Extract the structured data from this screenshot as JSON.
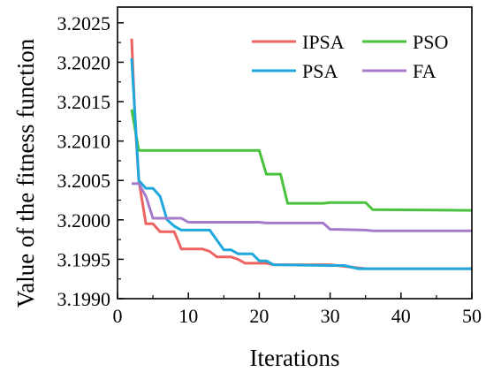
{
  "chart_data": {
    "type": "line",
    "title": "",
    "xlabel": "Iterations",
    "ylabel": "Value of the fitness function",
    "xlim": [
      0,
      50
    ],
    "ylim": [
      3.199,
      3.2027
    ],
    "xticks": [
      0,
      10,
      20,
      30,
      40,
      50
    ],
    "yticks": [
      "3.1990",
      "3.1995",
      "3.2000",
      "3.2005",
      "3.2010",
      "3.2015",
      "3.2020",
      "3.2025"
    ],
    "legend_position": "top-right",
    "grid": false,
    "series": [
      {
        "name": "IPSA",
        "color": "#ef6262",
        "points": [
          [
            2,
            3.2023
          ],
          [
            2.5,
            3.2012
          ],
          [
            3,
            3.2005
          ],
          [
            4,
            3.19995
          ],
          [
            5,
            3.19995
          ],
          [
            6,
            3.19985
          ],
          [
            8,
            3.19985
          ],
          [
            9,
            3.19963
          ],
          [
            12,
            3.19963
          ],
          [
            13,
            3.1996
          ],
          [
            14,
            3.19953
          ],
          [
            16,
            3.19953
          ],
          [
            17,
            3.1995
          ],
          [
            18,
            3.19945
          ],
          [
            21,
            3.19945
          ],
          [
            22,
            3.19943
          ],
          [
            30,
            3.19943
          ],
          [
            35,
            3.19938
          ],
          [
            50,
            3.19938
          ]
        ]
      },
      {
        "name": "PSO",
        "color": "#48c23a",
        "points": [
          [
            2,
            3.2014
          ],
          [
            3,
            3.20088
          ],
          [
            20,
            3.20088
          ],
          [
            21,
            3.20058
          ],
          [
            23,
            3.20058
          ],
          [
            24,
            3.20021
          ],
          [
            29,
            3.20021
          ],
          [
            30,
            3.20022
          ],
          [
            35,
            3.20022
          ],
          [
            36,
            3.20013
          ],
          [
            50,
            3.20012
          ]
        ]
      },
      {
        "name": "PSA",
        "color": "#1ea8dc",
        "points": [
          [
            2,
            3.20205
          ],
          [
            3,
            3.2005
          ],
          [
            4,
            3.2004
          ],
          [
            5,
            3.2004
          ],
          [
            6,
            3.2003
          ],
          [
            7,
            3.2
          ],
          [
            8,
            3.19992
          ],
          [
            9,
            3.19987
          ],
          [
            13,
            3.19987
          ],
          [
            15,
            3.19962
          ],
          [
            16,
            3.19962
          ],
          [
            17,
            3.19957
          ],
          [
            19,
            3.19957
          ],
          [
            20,
            3.19948
          ],
          [
            21,
            3.19948
          ],
          [
            22,
            3.19943
          ],
          [
            30,
            3.19942
          ],
          [
            32,
            3.19942
          ],
          [
            34,
            3.19938
          ],
          [
            50,
            3.19938
          ]
        ]
      },
      {
        "name": "FA",
        "color": "#a77bcc",
        "points": [
          [
            2,
            3.20046
          ],
          [
            3,
            3.20046
          ],
          [
            4,
            3.2003
          ],
          [
            5,
            3.20002
          ],
          [
            9,
            3.20002
          ],
          [
            10,
            3.19997
          ],
          [
            20,
            3.19997
          ],
          [
            21,
            3.19996
          ],
          [
            29,
            3.19996
          ],
          [
            30,
            3.19988
          ],
          [
            35,
            3.19987
          ],
          [
            36,
            3.19986
          ],
          [
            50,
            3.19986
          ]
        ]
      }
    ]
  }
}
